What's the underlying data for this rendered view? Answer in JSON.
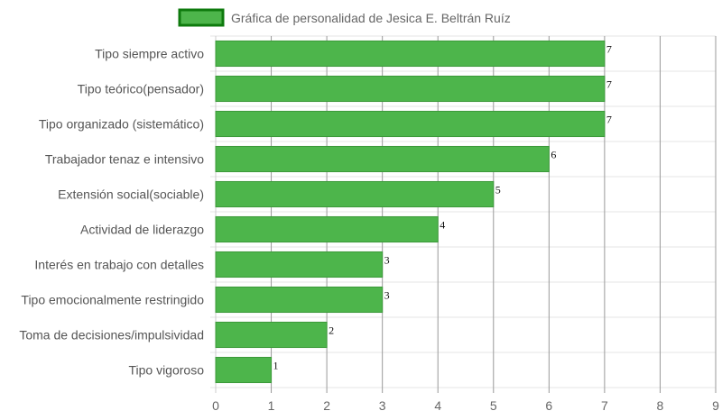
{
  "chart_data": {
    "type": "bar",
    "orientation": "horizontal",
    "legend": {
      "label": "Gráfica de personalidad de Jesica E. Beltrán Ruíz",
      "position": "top"
    },
    "categories": [
      "Tipo siempre activo",
      "Tipo teórico(pensador)",
      "Tipo organizado (sistemático)",
      "Trabajador tenaz e intensivo",
      "Extensión social(sociable)",
      "Actividad de liderazgo",
      "Interés en trabajo con detalles",
      "Tipo emocionalmente restringido",
      "Toma de decisiones/impulsividad",
      "Tipo vigoroso"
    ],
    "series": [
      {
        "name": "Gráfica de personalidad de Jesica E. Beltrán Ruíz",
        "values": [
          7,
          7,
          7,
          6,
          5,
          4,
          3,
          3,
          2,
          1
        ]
      }
    ],
    "xlim": [
      0,
      9
    ],
    "xticks": [
      "0",
      "1",
      "2",
      "3",
      "4",
      "5",
      "6",
      "7",
      "8",
      "9"
    ],
    "grid": true,
    "colors": {
      "bar_fill": "#4db54b",
      "bar_stroke": "#3c9a3a",
      "legend_fill": "#4db54b",
      "legend_stroke": "#0e7a0d",
      "grid": "#e6e6e6",
      "vgrid": "#999999"
    }
  }
}
